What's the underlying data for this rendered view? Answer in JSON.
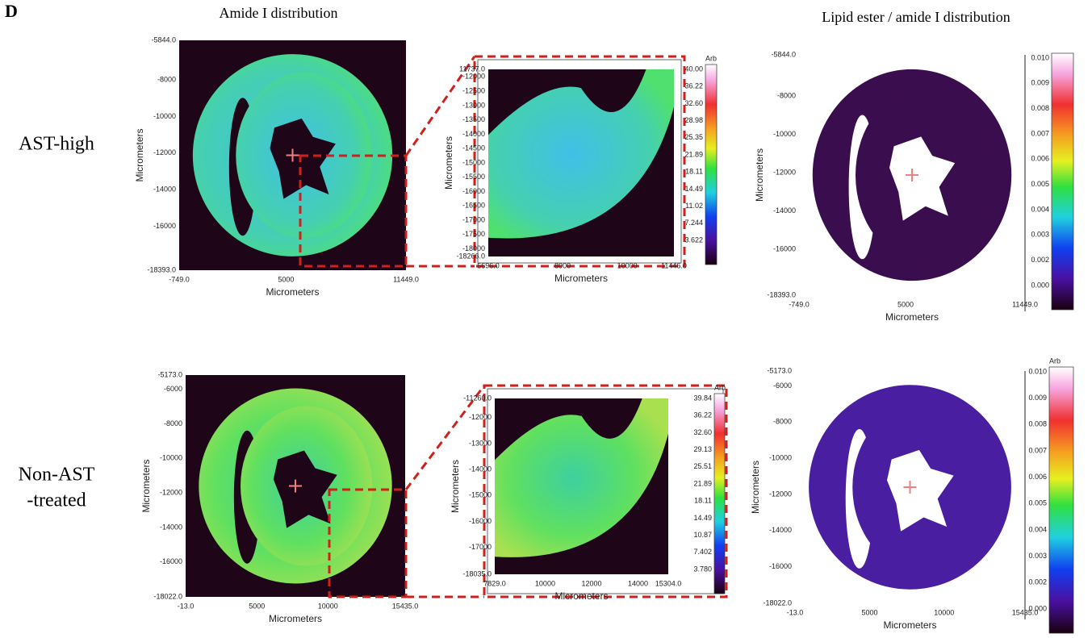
{
  "panel_label": "D",
  "column_titles": [
    "Amide I distribution",
    "Lipid ester / amide I distribution"
  ],
  "rows": [
    {
      "label": [
        "AST-high"
      ],
      "amide": {
        "yticks": [
          "-5844.0",
          "-8000",
          "-10000",
          "-12000",
          "-14000",
          "-16000",
          "-18393.0"
        ],
        "xticks": [
          "-749.0",
          "5000",
          "11449.0"
        ],
        "xlabel": "Micrometers",
        "ylabel": "Micrometers"
      },
      "zoom": {
        "yticks": [
          "11737.0",
          "-12000",
          "-12500",
          "-13000",
          "-13500",
          "-14000",
          "-14500",
          "-15000",
          "-15500",
          "-16000",
          "-16500",
          "-17000",
          "-17500",
          "-18000",
          "-18266.0"
        ],
        "xticks": [
          "5696.0",
          "8000",
          "10000",
          "11446.0"
        ],
        "xlabel": "Micrometers",
        "ylabel": "Micrometers",
        "colorbar": {
          "unit": "Arb",
          "labels": [
            "40.00",
            "36.22",
            "32.60",
            "28.98",
            "25.35",
            "21.89",
            "18.11",
            "14.49",
            "11.02",
            "7.244",
            "3.622"
          ]
        }
      },
      "ratio": {
        "yticks": [
          "-5844.0",
          "-8000",
          "-10000",
          "-12000",
          "-14000",
          "-16000",
          "-18393.0"
        ],
        "xticks": [
          "-749.0",
          "5000",
          "11449.0"
        ],
        "xlabel": "Micrometers",
        "ylabel": "Micrometers",
        "colorbar": {
          "labels": [
            "0.010",
            "0.009",
            "0.008",
            "0.007",
            "0.006",
            "0.005",
            "0.004",
            "0.003",
            "0.002",
            "0.000"
          ]
        }
      }
    },
    {
      "label": [
        "Non-AST",
        "-treated"
      ],
      "amide": {
        "yticks": [
          "-5173.0",
          "-6000",
          "-8000",
          "-10000",
          "-12000",
          "-14000",
          "-16000",
          "-18022.0"
        ],
        "xticks": [
          "-13.0",
          "5000",
          "10000",
          "15435.0"
        ],
        "xlabel": "Micrometers",
        "ylabel": "Micrometers"
      },
      "zoom": {
        "yticks": [
          "-11260.0",
          "-12000",
          "-13000",
          "-14000",
          "-15000",
          "-16000",
          "-17000",
          "-18035.0"
        ],
        "xticks": [
          "7829.0",
          "10000",
          "12000",
          "14000",
          "15304.0"
        ],
        "xlabel": "Micrometers",
        "ylabel": "Micrometers",
        "colorbar": {
          "unit": "Arb",
          "labels": [
            "39.84",
            "36.22",
            "32.60",
            "29.13",
            "25.51",
            "21.89",
            "18.11",
            "14.49",
            "10.87",
            "7.402",
            "3.780"
          ]
        }
      },
      "ratio": {
        "yticks": [
          "-5173.0",
          "-6000",
          "-8000",
          "-10000",
          "-12000",
          "-14000",
          "-16000",
          "-18022.0"
        ],
        "xticks": [
          "-13.0",
          "5000",
          "10000",
          "15435.0"
        ],
        "xlabel": "Micrometers",
        "ylabel": "Micrometers",
        "colorbar": {
          "unit": "Arb",
          "labels": [
            "0.010",
            "0.009",
            "0.008",
            "0.007",
            "0.006",
            "0.005",
            "0.004",
            "0.003",
            "0.002",
            "0.000"
          ]
        }
      }
    }
  ]
}
